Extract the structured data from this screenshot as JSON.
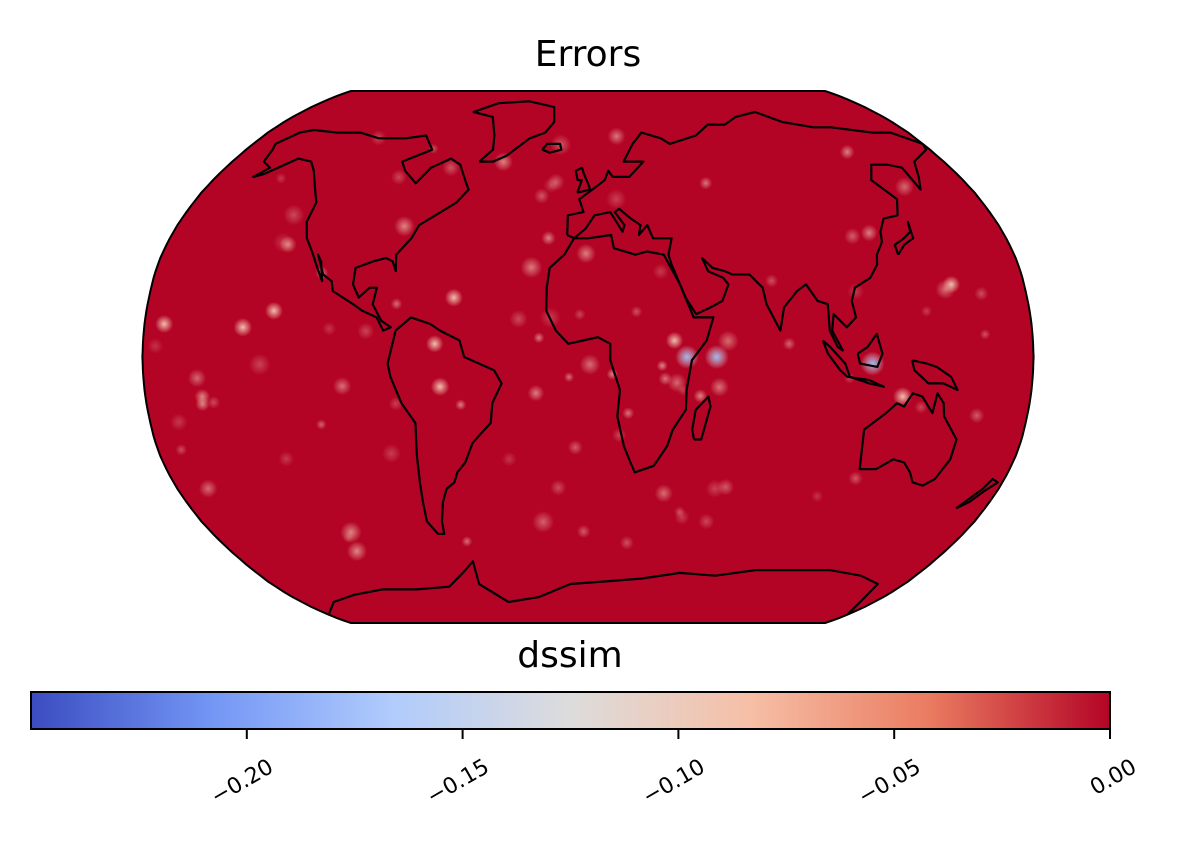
{
  "map": {
    "title": "Errors",
    "projection": "robinson",
    "background_color": "#b40426",
    "coastline_color": "#000000",
    "anomalies": [
      {
        "lon": 52,
        "lat": 0,
        "strength": 1.0
      },
      {
        "lon": 40,
        "lat": 0,
        "strength": 0.95
      },
      {
        "lon": 115,
        "lat": -2,
        "strength": 1.0
      },
      {
        "lon": 128,
        "lat": -12,
        "strength": 0.6
      },
      {
        "lon": -140,
        "lat": 9,
        "strength": 0.55
      },
      {
        "lon": -128,
        "lat": 14,
        "strength": 0.5
      },
      {
        "lon": -172,
        "lat": 10,
        "strength": 0.5
      },
      {
        "lon": -60,
        "lat": -9,
        "strength": 0.55
      },
      {
        "lon": -55,
        "lat": 18,
        "strength": 0.5
      },
      {
        "lon": -62,
        "lat": 4,
        "strength": 0.45
      },
      {
        "lon": 35,
        "lat": 5,
        "strength": 0.45
      },
      {
        "lon": 150,
        "lat": 22,
        "strength": 0.45
      }
    ]
  },
  "colorbar": {
    "label": "dssim",
    "vmin": -0.25,
    "vmax": 0.0,
    "ticks": [
      "−0.20",
      "−0.15",
      "−0.10",
      "−0.05",
      "0.00"
    ],
    "tick_values": [
      -0.2,
      -0.15,
      -0.1,
      -0.05,
      0.0
    ],
    "colormap": "coolwarm",
    "color_stops": [
      "#3b4cc0",
      "#7396f5",
      "#b0cbfc",
      "#dddcdc",
      "#f6bfa6",
      "#ea7b60",
      "#b40426"
    ]
  }
}
